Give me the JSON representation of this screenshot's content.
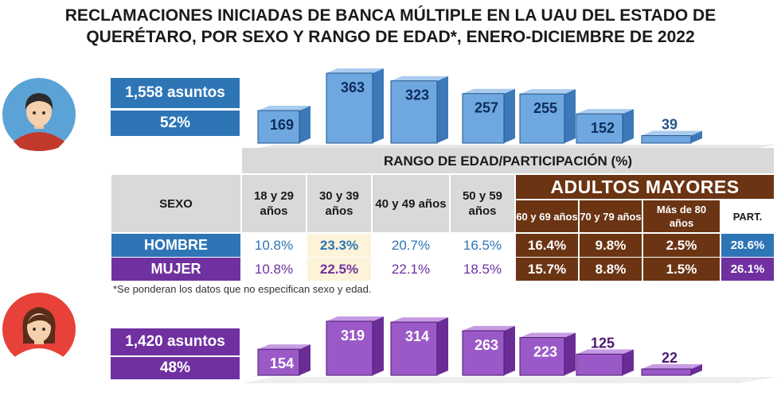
{
  "title": {
    "line1": "RECLAMACIONES INICIADAS DE BANCA MÚLTIPLE EN LA UAU DEL ESTADO DE",
    "line2": "QUERÉTARO, POR SEXO Y RANGO DE EDAD*, ENERO-DICIEMBRE DE 2022"
  },
  "men": {
    "asuntos": "1,558 asuntos",
    "pct": "52%"
  },
  "women": {
    "asuntos": "1,420 asuntos",
    "pct": "48%"
  },
  "table": {
    "range_header": "RANGO DE EDAD/PARTICIPACIÓN (%)",
    "sexo_label": "SEXO",
    "adultos_label": "ADULTOS MAYORES",
    "age_groups": [
      "18 y 29 años",
      "30 y 39 años",
      "40 y 49 años",
      "50 y 59 años"
    ],
    "senior_groups": [
      "60 y 69 años",
      "70 y 79 años",
      "Más de 80 años"
    ],
    "part_label": "PART.",
    "hombre_label": "HOMBRE",
    "mujer_label": "MUJER",
    "hombre_values": [
      "10.8%",
      "23.3%",
      "20.7%",
      "16.5%"
    ],
    "hombre_senior": [
      "16.4%",
      "9.8%",
      "2.5%"
    ],
    "hombre_part": "28.6%",
    "mujer_values": [
      "10.8%",
      "22.5%",
      "22.1%",
      "18.5%"
    ],
    "mujer_senior": [
      "15.7%",
      "8.8%",
      "1.5%"
    ],
    "mujer_part": "26.1%"
  },
  "footnote": "*Se ponderan los datos que no especifican sexo y edad.",
  "colors": {
    "blue": "#2e75b6",
    "purple": "#7030a0",
    "brown": "#6b3413",
    "highlight": "#fdf3d9",
    "grey": "#d9d9d9"
  },
  "chart_data": [
    {
      "type": "bar",
      "title": "Hombre",
      "categories": [
        "18 y 29 años",
        "30 y 39 años",
        "40 y 49 años",
        "50 y 59 años",
        "60 y 69 años",
        "70 y 79 años",
        "Más de 80 años"
      ],
      "values": [
        169,
        363,
        323,
        257,
        255,
        152,
        39
      ],
      "labels": [
        "169",
        "363",
        "323",
        "257",
        "255",
        "152",
        "39"
      ]
    },
    {
      "type": "bar",
      "title": "Mujer",
      "categories": [
        "18 y 29 años",
        "30 y 39 años",
        "40 y 49 años",
        "50 y 59 años",
        "60 y 69 años",
        "70 y 79 años",
        "Más de 80 años"
      ],
      "values": [
        154,
        319,
        314,
        263,
        223,
        125,
        22
      ],
      "labels": [
        "154",
        "319",
        "314",
        "263",
        "223",
        "125",
        "22"
      ]
    }
  ]
}
